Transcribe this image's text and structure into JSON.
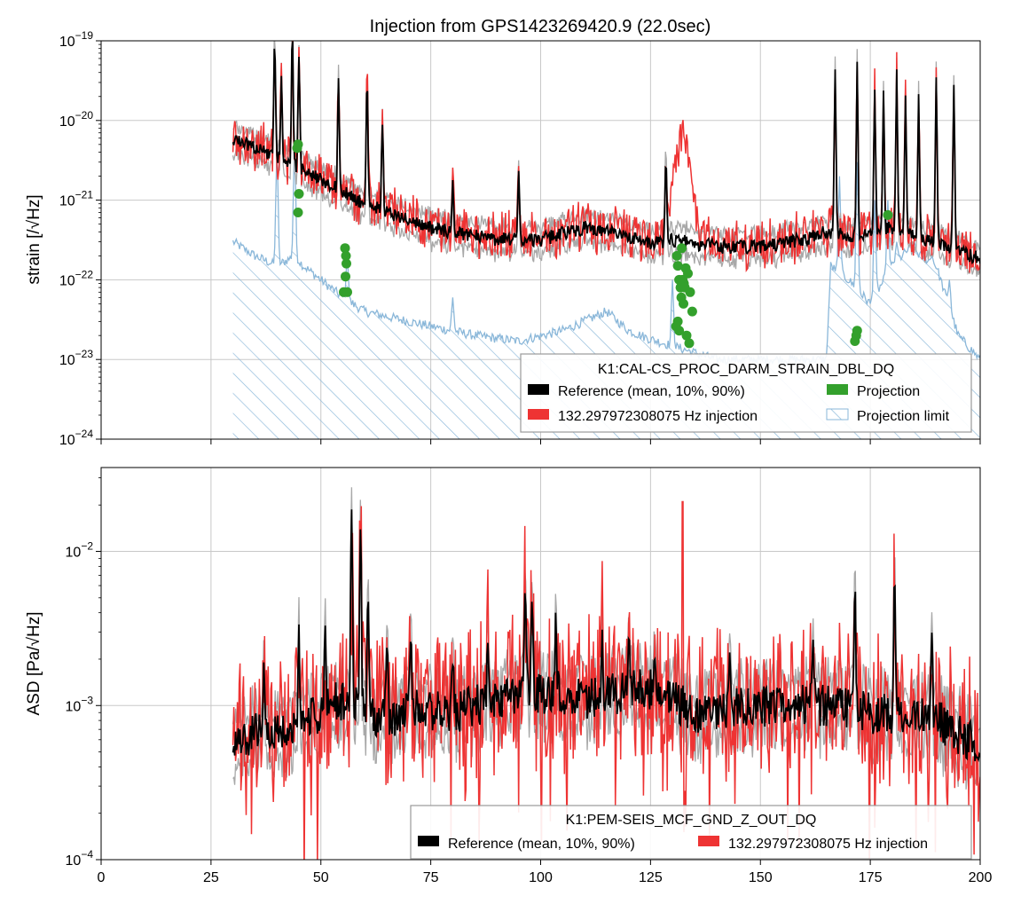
{
  "chart_data": [
    {
      "type": "line",
      "title": "Injection from GPS1423269420.9 (22.0sec)",
      "xlabel": "",
      "ylabel": "strain [/√Hz]",
      "xlim": [
        0,
        200
      ],
      "ylim": [
        1e-24,
        1e-19
      ],
      "yscale": "log",
      "grid": true,
      "x_ticks": [
        "0",
        "25",
        "50",
        "75",
        "100",
        "125",
        "150",
        "175",
        "200"
      ],
      "y_ticks": [
        {
          "base": "10",
          "exp": "−24"
        },
        {
          "base": "10",
          "exp": "−23"
        },
        {
          "base": "10",
          "exp": "−22"
        },
        {
          "base": "10",
          "exp": "−21"
        },
        {
          "base": "10",
          "exp": "−20"
        },
        {
          "base": "10",
          "exp": "−19"
        }
      ],
      "legend": {
        "title": "K1:CAL-CS_PROC_DARM_STRAIN_DBL_DQ",
        "placement": "lower-right",
        "entries": [
          {
            "label": "Reference (mean, 10%, 90%)",
            "color": "#000000",
            "kind": "patch"
          },
          {
            "label": "132.297972308075 Hz injection",
            "color": "#ee3333",
            "kind": "patch"
          },
          {
            "label": "Projection",
            "color": "#33a02c",
            "kind": "patch"
          },
          {
            "label": "Projection limit",
            "color": "#8ab7d9",
            "kind": "hatch"
          }
        ]
      },
      "baseline_points": [
        [
          30,
          6e-21
        ],
        [
          40,
          3.5e-21
        ],
        [
          50,
          1.8e-21
        ],
        [
          60,
          9e-22
        ],
        [
          75,
          4.5e-22
        ],
        [
          90,
          3.2e-22
        ],
        [
          100,
          3.2e-22
        ],
        [
          110,
          4.5e-22
        ],
        [
          120,
          3.5e-22
        ],
        [
          125,
          2.8e-22
        ],
        [
          130,
          3.2e-22
        ],
        [
          140,
          2.6e-22
        ],
        [
          150,
          2.6e-22
        ],
        [
          160,
          3.2e-22
        ],
        [
          165,
          4e-22
        ],
        [
          170,
          3.5e-22
        ],
        [
          180,
          4.5e-22
        ],
        [
          190,
          3e-22
        ],
        [
          200,
          1.8e-22
        ]
      ],
      "peaks": [
        [
          39.5,
          1e-19
        ],
        [
          41,
          3e-20
        ],
        [
          43.5,
          1.5e-19
        ],
        [
          45,
          7e-20
        ],
        [
          54,
          3e-20
        ],
        [
          60.5,
          3e-20
        ],
        [
          64,
          1e-20
        ],
        [
          80,
          1.5e-21
        ],
        [
          95,
          2e-21
        ],
        [
          128.5,
          3e-21
        ],
        [
          167,
          5e-20
        ],
        [
          172,
          5e-20
        ],
        [
          176,
          2e-20
        ],
        [
          178,
          2e-20
        ],
        [
          181,
          5e-20
        ],
        [
          183,
          2e-20
        ],
        [
          186,
          2e-20
        ],
        [
          190,
          4e-20
        ],
        [
          194,
          3e-20
        ]
      ],
      "injection_bump": {
        "center": 132.3,
        "width": 2.5,
        "peak": 1.5e-20
      },
      "limit_points": [
        [
          30,
          3e-22
        ],
        [
          35,
          2e-22
        ],
        [
          40,
          1.5e-22
        ],
        [
          44,
          2e-22
        ],
        [
          46,
          1.5e-22
        ],
        [
          50,
          1e-22
        ],
        [
          55,
          6e-23
        ],
        [
          60,
          4e-23
        ],
        [
          75,
          2.6e-23
        ],
        [
          85,
          2e-23
        ],
        [
          95,
          1.7e-23
        ],
        [
          105,
          2.3e-23
        ],
        [
          115,
          4e-23
        ],
        [
          120,
          2.3e-23
        ],
        [
          125,
          1.8e-23
        ],
        [
          140,
          1e-23
        ],
        [
          165,
          1e-23
        ],
        [
          166,
          1.5e-22
        ],
        [
          170,
          1e-22
        ],
        [
          175,
          5e-23
        ],
        [
          180,
          1.5e-22
        ],
        [
          184,
          2.5e-22
        ],
        [
          190,
          1.5e-22
        ],
        [
          195,
          2e-23
        ],
        [
          200,
          1e-23
        ]
      ],
      "limit_spikes": [
        [
          40,
          5e-21
        ],
        [
          44,
          5e-21
        ],
        [
          56,
          2e-22
        ],
        [
          80,
          6e-23
        ],
        [
          130,
          1e-22
        ],
        [
          168,
          2e-21
        ],
        [
          172,
          3e-21
        ],
        [
          176,
          1e-21
        ],
        [
          179,
          1e-21
        ],
        [
          181,
          3e-22
        ],
        [
          185,
          3e-22
        ],
        [
          189,
          2e-22
        ],
        [
          193,
          1e-22
        ]
      ],
      "projection_points": [
        [
          44.6,
          4.5e-21
        ],
        [
          44.8,
          5e-21
        ],
        [
          45,
          1.2e-21
        ],
        [
          44.8,
          7e-22
        ],
        [
          55.2,
          7e-23
        ],
        [
          55.6,
          1.1e-22
        ],
        [
          55.8,
          1.6e-22
        ],
        [
          55.7,
          2e-22
        ],
        [
          55.5,
          2.5e-22
        ],
        [
          56,
          7e-23
        ],
        [
          131,
          2e-22
        ],
        [
          131.2,
          1.5e-22
        ],
        [
          131.5,
          1e-22
        ],
        [
          131.8,
          8e-23
        ],
        [
          132,
          6e-23
        ],
        [
          132.3,
          1e-22
        ],
        [
          132.6,
          9e-23
        ],
        [
          133,
          1.4e-22
        ],
        [
          133.5,
          1.2e-22
        ],
        [
          134,
          7e-23
        ],
        [
          134.5,
          4e-23
        ],
        [
          133.8,
          1.6e-23
        ],
        [
          133.2,
          2e-23
        ],
        [
          131.5,
          2.3e-23
        ],
        [
          131.2,
          3e-23
        ],
        [
          130.8,
          2.6e-23
        ],
        [
          132.8,
          8e-23
        ],
        [
          132.1,
          2.5e-22
        ],
        [
          132.5,
          5e-23
        ],
        [
          171.5,
          1.7e-23
        ],
        [
          171.8,
          2e-23
        ],
        [
          172,
          2.3e-23
        ],
        [
          179,
          6.5e-22
        ]
      ]
    },
    {
      "type": "line",
      "title": "",
      "xlabel": "",
      "ylabel": "ASD [Pa/√Hz]",
      "xlim": [
        0,
        200
      ],
      "ylim": [
        0.0001,
        0.035
      ],
      "yscale": "log",
      "grid": true,
      "x_ticks": [
        "0",
        "25",
        "50",
        "75",
        "100",
        "125",
        "150",
        "175",
        "200"
      ],
      "y_ticks": [
        {
          "base": "10",
          "exp": "−4",
          "value": 0.0001
        },
        {
          "base": "10",
          "exp": "−3",
          "value": 0.001
        },
        {
          "base": "10",
          "exp": "−2",
          "value": 0.01
        }
      ],
      "legend": {
        "title": "K1:PEM-SEIS_MCF_GND_Z_OUT_DQ",
        "placement": "lower-right",
        "entries": [
          {
            "label": "Reference (mean, 10%, 90%)",
            "color": "#000000",
            "kind": "patch"
          },
          {
            "label": "132.297972308075 Hz injection",
            "color": "#ee3333",
            "kind": "patch"
          }
        ]
      },
      "baseline_points": [
        [
          30,
          0.0006
        ],
        [
          40,
          0.0007
        ],
        [
          50,
          0.0009
        ],
        [
          55,
          0.0011
        ],
        [
          65,
          0.0008
        ],
        [
          70,
          0.001
        ],
        [
          80,
          0.0009
        ],
        [
          90,
          0.0011
        ],
        [
          100,
          0.0012
        ],
        [
          110,
          0.0011
        ],
        [
          125,
          0.0013
        ],
        [
          135,
          0.0009
        ],
        [
          150,
          0.001
        ],
        [
          165,
          0.001
        ],
        [
          175,
          0.0009
        ],
        [
          190,
          0.0008
        ],
        [
          200,
          0.00055
        ]
      ],
      "peaks": [
        [
          37,
          0.002
        ],
        [
          45,
          0.0025
        ],
        [
          51,
          0.0025
        ],
        [
          57,
          0.017
        ],
        [
          59,
          0.018
        ],
        [
          60.7,
          0.005
        ],
        [
          65,
          0.0025
        ],
        [
          70.5,
          0.003
        ],
        [
          80,
          0.002
        ],
        [
          88,
          0.003
        ],
        [
          96.5,
          0.0065
        ],
        [
          98,
          0.005
        ],
        [
          103.5,
          0.0035
        ],
        [
          114,
          0.0025
        ],
        [
          120,
          0.003
        ],
        [
          126,
          0.0025
        ],
        [
          143,
          0.0023
        ],
        [
          162,
          0.002
        ],
        [
          171.5,
          0.005
        ],
        [
          180.5,
          0.006
        ],
        [
          189,
          0.0025
        ]
      ],
      "injection_spike": {
        "x": 132.3,
        "y": 0.021
      }
    }
  ]
}
